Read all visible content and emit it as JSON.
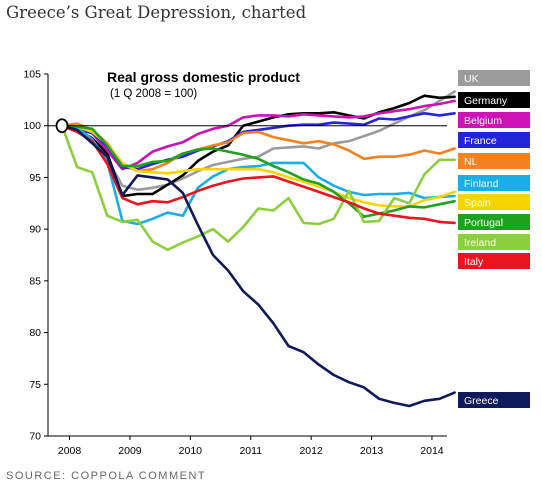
{
  "page": {
    "title": "Greece’s Great Depression, charted",
    "source": "SOURCE: COPPOLA COMMENT"
  },
  "chart_data": {
    "type": "line",
    "title": "Real gross domestic product",
    "subtitle": "(1 Q 2008 = 100)",
    "xlabel": "",
    "ylabel": "",
    "x_ticks": [
      "2008",
      "2009",
      "2010",
      "2011",
      "2012",
      "2013",
      "2014"
    ],
    "ylim": [
      70,
      105
    ],
    "y_ticks": [
      70,
      75,
      80,
      85,
      90,
      95,
      100,
      105
    ],
    "grid": false,
    "reference_line": 100,
    "legend_position": "right",
    "x_quarters": [
      "2008Q1",
      "2008Q2",
      "2008Q3",
      "2008Q4",
      "2009Q1",
      "2009Q2",
      "2009Q3",
      "2009Q4",
      "2010Q1",
      "2010Q2",
      "2010Q3",
      "2010Q4",
      "2011Q1",
      "2011Q2",
      "2011Q3",
      "2011Q4",
      "2012Q1",
      "2012Q2",
      "2012Q3",
      "2012Q4",
      "2013Q1",
      "2013Q2",
      "2013Q3",
      "2013Q4",
      "2014Q1",
      "2014Q2",
      "2014Q3"
    ],
    "series": [
      {
        "name": "UK",
        "color": "#9b9b9b",
        "values": [
          100,
          99.5,
          98.5,
          96.8,
          94.2,
          93.8,
          94.0,
          94.3,
          94.9,
          95.6,
          96.2,
          96.5,
          96.8,
          97.0,
          97.8,
          97.9,
          98.0,
          97.8,
          98.3,
          98.5,
          99.0,
          99.5,
          100.2,
          100.9,
          101.5,
          102.4,
          103.3
        ]
      },
      {
        "name": "Germany",
        "color": "#000000",
        "values": [
          100,
          99.6,
          98.8,
          97.3,
          93.2,
          93.4,
          93.4,
          94.3,
          95.2,
          96.6,
          97.5,
          98.1,
          100.0,
          100.4,
          100.8,
          101.1,
          101.2,
          101.2,
          101.3,
          101.0,
          100.7,
          101.3,
          101.7,
          102.2,
          102.9,
          102.7,
          102.8
        ]
      },
      {
        "name": "Belgium",
        "color": "#cc14b4",
        "values": [
          100,
          99.8,
          99.3,
          97.6,
          95.8,
          96.4,
          97.5,
          98.0,
          98.4,
          99.2,
          99.7,
          100.0,
          100.8,
          101.0,
          101.0,
          100.9,
          101.1,
          101.0,
          100.9,
          100.8,
          100.9,
          101.2,
          101.4,
          101.6,
          101.9,
          102.1,
          102.4
        ]
      },
      {
        "name": "France",
        "color": "#2525d8",
        "values": [
          100,
          99.6,
          99.3,
          98.0,
          96.0,
          95.8,
          96.3,
          96.7,
          97.0,
          97.6,
          98.0,
          98.5,
          99.4,
          99.6,
          99.8,
          100.0,
          100.1,
          100.1,
          100.3,
          100.2,
          100.1,
          100.7,
          100.6,
          100.9,
          101.2,
          101.0,
          101.2
        ]
      },
      {
        "name": "NL",
        "color": "#f58220",
        "values": [
          100,
          100.2,
          99.6,
          98.3,
          96.3,
          95.6,
          95.8,
          96.4,
          97.3,
          97.7,
          98.1,
          98.4,
          99.3,
          99.4,
          98.9,
          98.6,
          98.3,
          98.5,
          98.2,
          97.6,
          96.8,
          97.0,
          97.0,
          97.2,
          97.6,
          97.3,
          97.8
        ]
      },
      {
        "name": "Finland",
        "color": "#1aaee8",
        "values": [
          100,
          99.8,
          98.7,
          96.5,
          90.8,
          90.5,
          91.0,
          91.6,
          91.3,
          94.0,
          95.1,
          95.8,
          96.0,
          96.1,
          96.4,
          96.4,
          96.4,
          95.0,
          94.2,
          93.6,
          93.3,
          93.4,
          93.4,
          93.5,
          93.0,
          93.1,
          93.2
        ]
      },
      {
        "name": "Spain",
        "color": "#f6d400",
        "values": [
          100,
          99.9,
          99.4,
          98.2,
          96.4,
          95.6,
          95.5,
          95.4,
          95.6,
          95.8,
          95.8,
          95.8,
          95.8,
          95.8,
          95.5,
          95.0,
          94.6,
          94.1,
          93.6,
          93.0,
          92.6,
          92.3,
          92.2,
          92.2,
          92.8,
          93.1,
          93.6
        ]
      },
      {
        "name": "Portugal",
        "color": "#1ea11e",
        "values": [
          100,
          99.9,
          99.7,
          98.1,
          96.1,
          96.1,
          96.5,
          96.6,
          97.3,
          97.7,
          97.8,
          97.5,
          97.2,
          96.8,
          96.1,
          95.5,
          94.8,
          94.4,
          93.6,
          92.5,
          91.2,
          91.5,
          91.8,
          92.2,
          92.1,
          92.4,
          92.7
        ]
      },
      {
        "name": "Ireland",
        "color": "#8ccf3c",
        "values": [
          100,
          96.0,
          95.5,
          91.3,
          90.7,
          90.9,
          88.8,
          88.0,
          88.7,
          89.3,
          90.0,
          88.8,
          90.2,
          92.0,
          91.8,
          93.0,
          90.6,
          90.5,
          91.0,
          93.7,
          90.7,
          90.8,
          93.0,
          92.5,
          95.3,
          96.7,
          96.7
        ]
      },
      {
        "name": "Italy",
        "color": "#e8141e",
        "values": [
          100,
          99.4,
          98.5,
          96.3,
          93.0,
          92.4,
          92.7,
          92.6,
          93.1,
          93.7,
          94.2,
          94.6,
          94.9,
          95.0,
          95.1,
          94.6,
          94.1,
          93.6,
          93.1,
          92.6,
          92.0,
          91.5,
          91.3,
          91.1,
          91.0,
          90.7,
          90.6
        ]
      },
      {
        "name": "Greece",
        "color": "#0d1b5a",
        "values": [
          100,
          99.6,
          98.3,
          97.0,
          93.3,
          95.2,
          95.0,
          94.8,
          93.5,
          90.4,
          87.5,
          86.0,
          84.0,
          82.7,
          80.9,
          78.7,
          78.1,
          76.9,
          75.9,
          75.2,
          74.7,
          73.6,
          73.2,
          72.9,
          73.4,
          73.6,
          74.2
        ]
      }
    ]
  }
}
